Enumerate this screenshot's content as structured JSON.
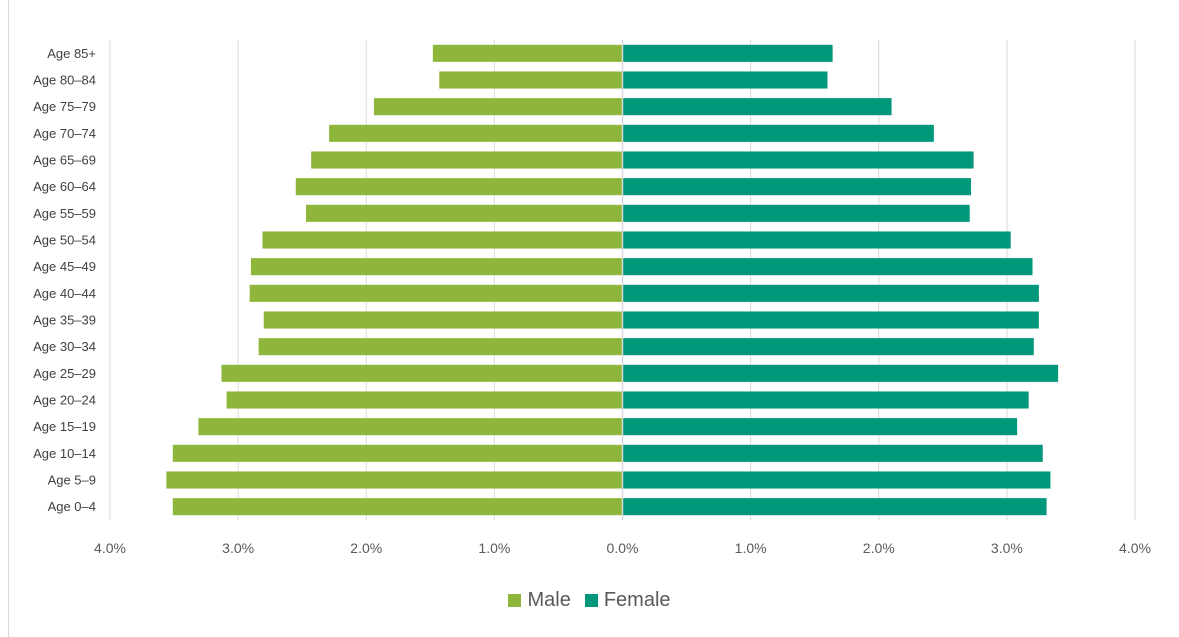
{
  "chart_data": {
    "type": "bar",
    "orientation": "horizontal",
    "categories": [
      "Age 85+",
      "Age 80–84",
      "Age 75–79",
      "Age 70–74",
      "Age 65–69",
      "Age 60–64",
      "Age 55–59",
      "Age 50–54",
      "Age 45–49",
      "Age 40–44",
      "Age 35–39",
      "Age 30–34",
      "Age 25–29",
      "Age 20–24",
      "Age 15–19",
      "Age 10–14",
      "Age 5–9",
      "Age 0–4"
    ],
    "series": [
      {
        "name": "Male",
        "color": "#8db63b",
        "values": [
          1.48,
          1.43,
          1.94,
          2.29,
          2.43,
          2.55,
          2.47,
          2.81,
          2.9,
          2.91,
          2.8,
          2.84,
          3.13,
          3.09,
          3.31,
          3.51,
          3.56,
          3.51
        ]
      },
      {
        "name": "Female",
        "color": "#00977b",
        "values": [
          1.64,
          1.6,
          2.1,
          2.43,
          2.74,
          2.72,
          2.71,
          3.03,
          3.2,
          3.25,
          3.25,
          3.21,
          3.4,
          3.17,
          3.08,
          3.28,
          3.34,
          3.31
        ]
      }
    ],
    "xlim": [
      -4.0,
      4.0
    ],
    "xticks": [
      "4.0%",
      "3.0%",
      "2.0%",
      "1.0%",
      "0.0%",
      "1.0%",
      "2.0%",
      "3.0%",
      "4.0%"
    ],
    "title": "",
    "xlabel": "",
    "ylabel": "",
    "grid": "vertical",
    "legend_position": "bottom"
  }
}
